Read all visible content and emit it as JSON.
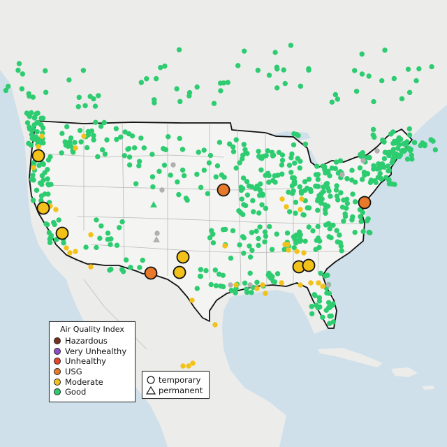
{
  "legend": {
    "title": "Air Quality Index",
    "categories": [
      {
        "label": "Hazardous",
        "color": "#7a2e1e"
      },
      {
        "label": "Very Unhealthy",
        "color": "#8e4fc6"
      },
      {
        "label": "Unhealthy",
        "color": "#e8452c"
      },
      {
        "label": "USG",
        "color": "#e8782a"
      },
      {
        "label": "Moderate",
        "color": "#f2c21b"
      },
      {
        "label": "Good",
        "color": "#2ecc71"
      }
    ]
  },
  "monitor_legend": {
    "temporary": "temporary",
    "permanent": "permanent"
  },
  "colors": {
    "water": "#cfe0ea",
    "land": "#ececea",
    "us_land": "#f4f4f2",
    "border": "#111111",
    "state_lines": "#b9b9b9",
    "no_data_marker": "#b0b0b0"
  }
}
